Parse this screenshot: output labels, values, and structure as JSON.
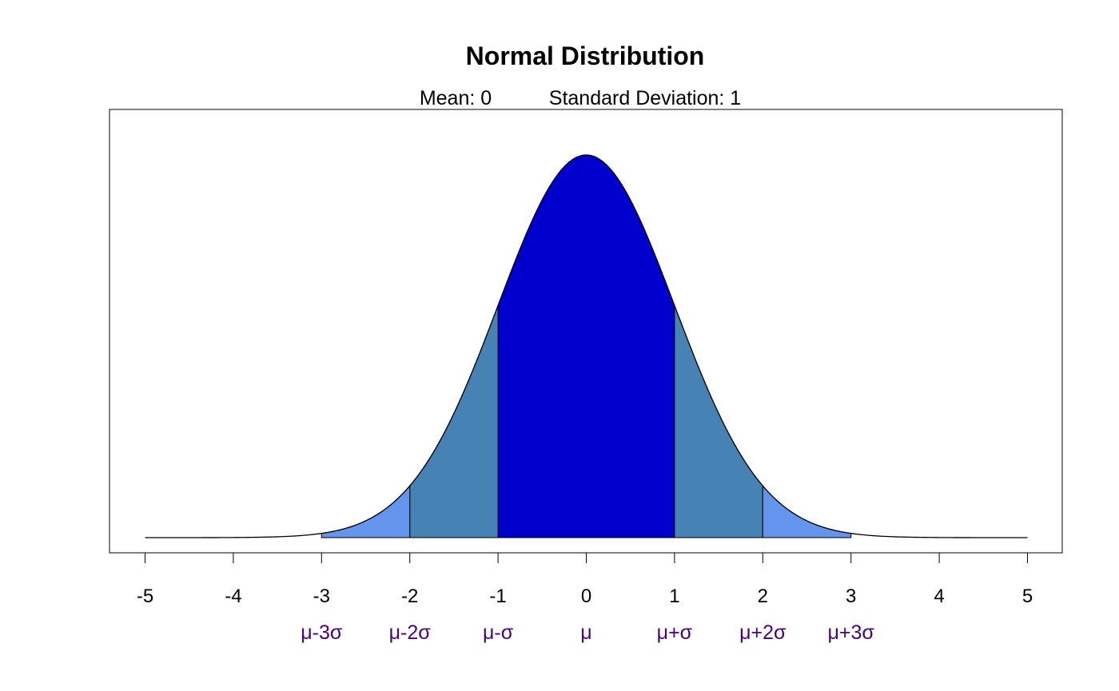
{
  "chart_data": {
    "type": "area",
    "title": "Normal Distribution",
    "subtitle": {
      "mean_text": "Mean: 0",
      "sd_text": "Standard Deviation: 1"
    },
    "mean": 0,
    "sd": 1,
    "xlim": [
      -5,
      5
    ],
    "x_ticks": [
      -5,
      -4,
      -3,
      -2,
      -1,
      0,
      1,
      2,
      3,
      4,
      5
    ],
    "x_tick_labels": [
      "-5",
      "-4",
      "-3",
      "-2",
      "-1",
      "0",
      "1",
      "2",
      "3",
      "4",
      "5"
    ],
    "sigma_labels": [
      {
        "x": -3,
        "label": "μ-3σ"
      },
      {
        "x": -2,
        "label": "μ-2σ"
      },
      {
        "x": -1,
        "label": "μ-σ"
      },
      {
        "x": 0,
        "label": "μ"
      },
      {
        "x": 1,
        "label": "μ+σ"
      },
      {
        "x": 2,
        "label": "μ+2σ"
      },
      {
        "x": 3,
        "label": "μ+3σ"
      }
    ],
    "bands": [
      {
        "from": -1,
        "to": 1,
        "color": "#0000CD"
      },
      {
        "from": -2,
        "to": -1,
        "color": "#4682B4"
      },
      {
        "from": 1,
        "to": 2,
        "color": "#4682B4"
      },
      {
        "from": -3,
        "to": -2,
        "color": "#6495ED"
      },
      {
        "from": 2,
        "to": 3,
        "color": "#6495ED"
      }
    ],
    "colors": {
      "curve": "#000000",
      "sigma_label": "#4B0082"
    },
    "grid": false,
    "y_axis_shown": false
  }
}
